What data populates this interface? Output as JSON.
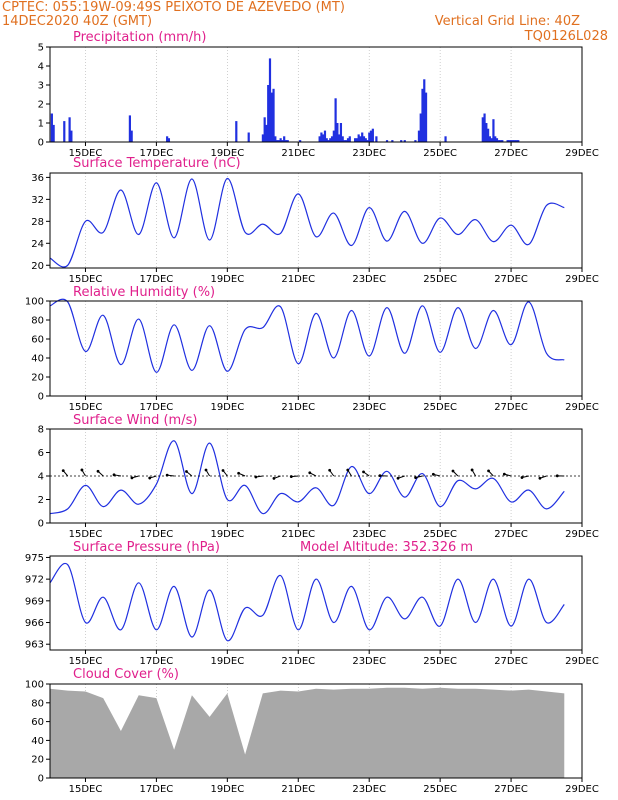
{
  "header": {
    "line1_left": "CPTEC:   055:19W-09:49S   PEIXOTO DE AZEVEDO (MT)",
    "line2_left": "14DEC2020 40Z (GMT)",
    "line2_right": "Vertical Grid Line: 40Z",
    "line3_right": "TQ0126L028"
  },
  "colors": {
    "header": "#e07020",
    "panel_title": "#e0208c",
    "series": "#2030e0",
    "cloud": "#a8a8a8"
  },
  "x_axis": {
    "labels": [
      "15DEC",
      "17DEC",
      "19DEC",
      "21DEC",
      "23DEC",
      "25DEC",
      "27DEC",
      "29DEC"
    ]
  },
  "chart_data": [
    {
      "type": "bar",
      "title": "Precipitation (mm/h)",
      "ylim": [
        0,
        5
      ],
      "yticks": [
        0,
        1,
        2,
        3,
        4,
        5
      ],
      "x": [
        0.05,
        0.1,
        0.4,
        0.55,
        0.6,
        2.25,
        2.3,
        3.3,
        3.35,
        5.25,
        5.6,
        6.0,
        6.05,
        6.1,
        6.15,
        6.2,
        6.25,
        6.3,
        6.35,
        6.4,
        6.45,
        6.5,
        6.55,
        6.6,
        6.65,
        6.7,
        7.05,
        7.6,
        7.65,
        7.7,
        7.75,
        7.8,
        7.85,
        7.9,
        7.95,
        8.0,
        8.05,
        8.1,
        8.15,
        8.2,
        8.25,
        8.3,
        8.35,
        8.4,
        8.45,
        8.6,
        8.65,
        8.7,
        8.75,
        8.8,
        8.85,
        8.9,
        8.95,
        9.0,
        9.05,
        9.1,
        9.2,
        9.5,
        9.65,
        9.9,
        10.0,
        10.3,
        10.4,
        10.45,
        10.5,
        10.55,
        10.6,
        11.15,
        12.2,
        12.25,
        12.3,
        12.35,
        12.4,
        12.45,
        12.5,
        12.55,
        12.6,
        12.65,
        12.7,
        12.75,
        12.9,
        12.95,
        13.0,
        13.05,
        13.1,
        13.15,
        13.2
      ],
      "values": [
        1.5,
        0.9,
        1.1,
        1.3,
        0.6,
        1.4,
        0.6,
        0.3,
        0.2,
        1.1,
        0.5,
        0.4,
        1.3,
        0.9,
        3.0,
        4.4,
        2.6,
        2.8,
        0.3,
        0.1,
        0.1,
        0.2,
        0.1,
        0.3,
        0.1,
        0.1,
        0.1,
        0.3,
        0.5,
        0.4,
        0.6,
        0.2,
        0.1,
        0.2,
        0.3,
        0.6,
        2.3,
        1.0,
        0.4,
        1.0,
        0.3,
        0.1,
        0.1,
        0.2,
        0.3,
        0.2,
        0.2,
        0.4,
        0.3,
        0.5,
        0.3,
        0.2,
        0.1,
        0.5,
        0.6,
        0.7,
        0.3,
        0.1,
        0.1,
        0.1,
        0.1,
        0.1,
        0.6,
        1.5,
        2.8,
        3.3,
        2.6,
        0.3,
        1.3,
        1.5,
        1.0,
        0.7,
        0.3,
        0.2,
        1.2,
        0.3,
        0.2,
        0.1,
        0.1,
        0.1,
        0.1,
        0.1,
        0.1,
        0.1,
        0.1,
        0.1,
        0.1
      ]
    },
    {
      "type": "line",
      "title": "Surface Temperature (nC)",
      "ylim": [
        19.5,
        36.8
      ],
      "yticks": [
        20,
        24,
        28,
        32,
        36
      ],
      "x": [
        0,
        0.5,
        1,
        1.5,
        2,
        2.5,
        3,
        3.5,
        4,
        4.5,
        5,
        5.5,
        6,
        6.5,
        7,
        7.5,
        8,
        8.5,
        9,
        9.5,
        10,
        10.5,
        11,
        11.5,
        12,
        12.5,
        13,
        13.5,
        14,
        14.5
      ],
      "values": [
        21.3,
        20,
        28,
        26,
        33.7,
        25.6,
        35,
        25,
        35.7,
        24.6,
        35.8,
        26,
        27.5,
        25.8,
        33,
        25.2,
        29.5,
        23.6,
        30.5,
        24.4,
        29.8,
        24,
        28.6,
        25.6,
        28.3,
        24.3,
        27.3,
        23.8,
        30.9,
        30.5
      ]
    },
    {
      "type": "line",
      "title": "Relative Humidity (%)",
      "ylim": [
        0,
        100
      ],
      "yticks": [
        0,
        20,
        40,
        60,
        80,
        100
      ],
      "x": [
        0,
        0.5,
        1,
        1.5,
        2,
        2.5,
        3,
        3.5,
        4,
        4.5,
        5,
        5.5,
        6,
        6.5,
        7,
        7.5,
        8,
        8.5,
        9,
        9.5,
        10,
        10.5,
        11,
        11.5,
        12,
        12.5,
        13,
        13.5,
        14,
        14.5
      ],
      "values": [
        95,
        99,
        47,
        85,
        33,
        81,
        25,
        75,
        27,
        74,
        26,
        70,
        72,
        94,
        34,
        87,
        40,
        90,
        42,
        93,
        45,
        95,
        46,
        93,
        50,
        90,
        54,
        99,
        45,
        38
      ]
    },
    {
      "type": "line",
      "title": "Surface Wind (m/s)",
      "ylim": [
        0,
        8
      ],
      "yticks": [
        0,
        2,
        4,
        6,
        8
      ],
      "x": [
        0,
        0.5,
        1,
        1.5,
        2,
        2.5,
        3,
        3.5,
        4,
        4.5,
        5,
        5.5,
        6,
        6.5,
        7,
        7.5,
        8,
        8.5,
        9,
        9.5,
        10,
        10.5,
        11,
        11.5,
        12,
        12.5,
        13,
        13.5,
        14,
        14.5
      ],
      "values": [
        0.8,
        1.2,
        3.2,
        1.4,
        2.8,
        1.6,
        3.3,
        7.0,
        2.5,
        6.8,
        2.0,
        3.2,
        0.8,
        2.5,
        1.8,
        3.0,
        1.5,
        4.8,
        2.5,
        4.4,
        2.2,
        4.2,
        1.4,
        3.6,
        2.9,
        3.8,
        1.8,
        2.8,
        1.2,
        2.7
      ]
    },
    {
      "type": "line",
      "title": "Surface Pressure (hPa)",
      "annotation": "Model Altitude: 352.326 m",
      "ylim": [
        962.2,
        975.2
      ],
      "yticks": [
        963,
        966,
        969,
        972,
        975
      ],
      "x": [
        0,
        0.5,
        1,
        1.5,
        2,
        2.5,
        3,
        3.5,
        4,
        4.5,
        5,
        5.5,
        6,
        6.5,
        7,
        7.5,
        8,
        8.5,
        9,
        9.5,
        10,
        10.5,
        11,
        11.5,
        12,
        12.5,
        13,
        13.5,
        14,
        14.5
      ],
      "values": [
        971.5,
        974,
        966,
        969.5,
        965,
        971.5,
        965,
        971,
        964,
        970.5,
        963.5,
        968,
        967,
        972.5,
        965,
        972,
        966,
        971,
        965,
        969.5,
        966.5,
        969.5,
        965.5,
        972,
        966,
        972,
        965.5,
        972,
        966,
        968.5
      ]
    },
    {
      "type": "area",
      "title": "Cloud Cover (%)",
      "ylim": [
        0,
        100
      ],
      "yticks": [
        0,
        20,
        40,
        60,
        80,
        100
      ],
      "x": [
        0,
        0.5,
        1,
        1.5,
        2,
        2.5,
        3,
        3.5,
        4,
        4.5,
        5,
        5.5,
        6,
        6.5,
        7,
        7.5,
        8,
        8.5,
        9,
        9.5,
        10,
        10.5,
        11,
        11.5,
        12,
        12.5,
        13,
        13.5,
        14,
        14.5
      ],
      "values": [
        95,
        93,
        92,
        85,
        50,
        88,
        85,
        30,
        88,
        65,
        90,
        25,
        90,
        93,
        92,
        95,
        94,
        95,
        95,
        96,
        96,
        95,
        96,
        95,
        95,
        94,
        93,
        94,
        92,
        90
      ]
    }
  ]
}
